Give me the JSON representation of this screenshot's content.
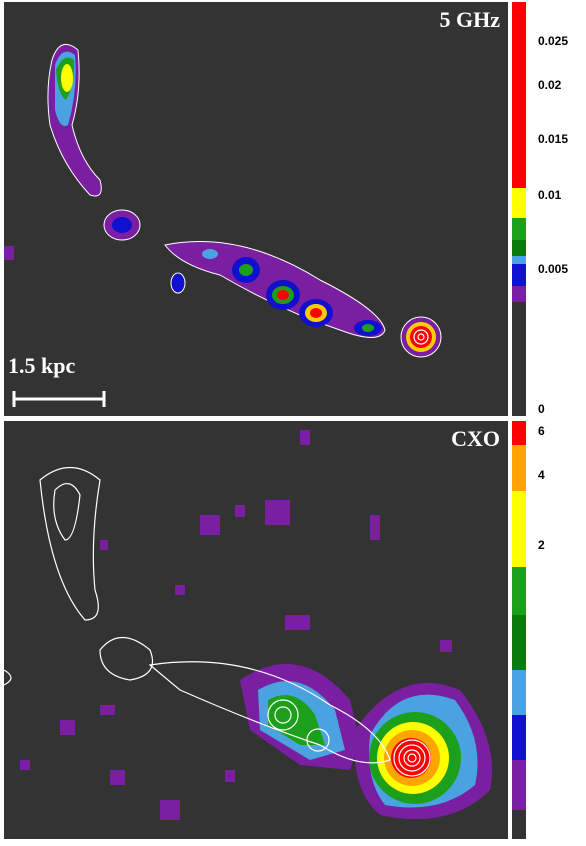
{
  "top_panel": {
    "label": "5 GHz",
    "scale_bar": "1.5 kpc",
    "colorbar_ticks": [
      0.025,
      0.02,
      0.015,
      0.01,
      0.005,
      0
    ]
  },
  "bottom_panel": {
    "label": "CXO",
    "colorbar_ticks": [
      6,
      4,
      2
    ]
  }
}
